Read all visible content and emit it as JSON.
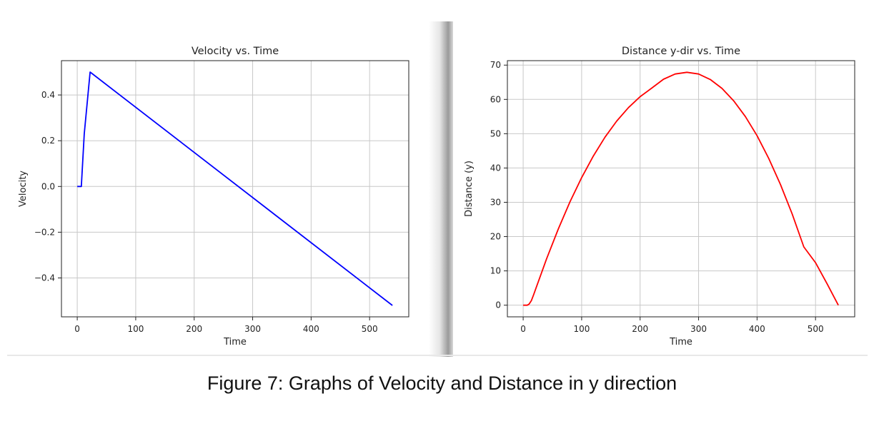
{
  "caption": "Figure 7: Graphs of Velocity and Distance in y direction",
  "chart_data": [
    {
      "type": "line",
      "title": "Velocity vs. Time",
      "xlabel": "Time",
      "ylabel": "Velocity",
      "xlim": [
        -27,
        567
      ],
      "ylim": [
        -0.57,
        0.55
      ],
      "xticks": [
        0,
        100,
        200,
        300,
        400,
        500
      ],
      "xtick_labels": [
        "0",
        "100",
        "200",
        "300",
        "400",
        "500"
      ],
      "yticks": [
        -0.4,
        -0.2,
        0.0,
        0.2,
        0.4
      ],
      "ytick_labels": [
        "−0.4",
        "−0.2",
        "0.0",
        "0.2",
        "0.4"
      ],
      "grid": true,
      "color": "#0000ff",
      "series": [
        {
          "x": [
            0,
            7,
            12,
            22,
            539
          ],
          "y": [
            0,
            0,
            0.23,
            0.5,
            -0.52
          ]
        }
      ]
    },
    {
      "type": "line",
      "title": "Distance y-dir vs. Time",
      "xlabel": "Time",
      "ylabel": "Distance (y)",
      "xlim": [
        -27,
        567
      ],
      "ylim": [
        -3.4,
        71.3
      ],
      "xticks": [
        0,
        100,
        200,
        300,
        400,
        500
      ],
      "xtick_labels": [
        "0",
        "100",
        "200",
        "300",
        "400",
        "500"
      ],
      "yticks": [
        0,
        10,
        20,
        30,
        40,
        50,
        60,
        70
      ],
      "ytick_labels": [
        "0",
        "10",
        "20",
        "30",
        "40",
        "50",
        "60",
        "70"
      ],
      "grid": true,
      "color": "#ff0000",
      "series": [
        {
          "x": [
            0,
            7,
            10,
            14,
            18,
            22,
            40,
            60,
            80,
            100,
            120,
            140,
            160,
            180,
            200,
            220,
            240,
            260,
            280,
            300,
            320,
            340,
            360,
            380,
            400,
            420,
            440,
            460,
            480,
            500,
            520,
            539
          ],
          "y": [
            0,
            0,
            0.3,
            1.3,
            3.1,
            5.0,
            13.5,
            22.2,
            30.1,
            37.2,
            43.5,
            49.0,
            53.7,
            57.6,
            60.8,
            63.3,
            65.9,
            67.4,
            67.9,
            67.4,
            65.8,
            63.2,
            59.6,
            55.0,
            49.4,
            42.8,
            35.2,
            26.6,
            17.0,
            12.4,
            6.2,
            0
          ]
        }
      ]
    }
  ]
}
